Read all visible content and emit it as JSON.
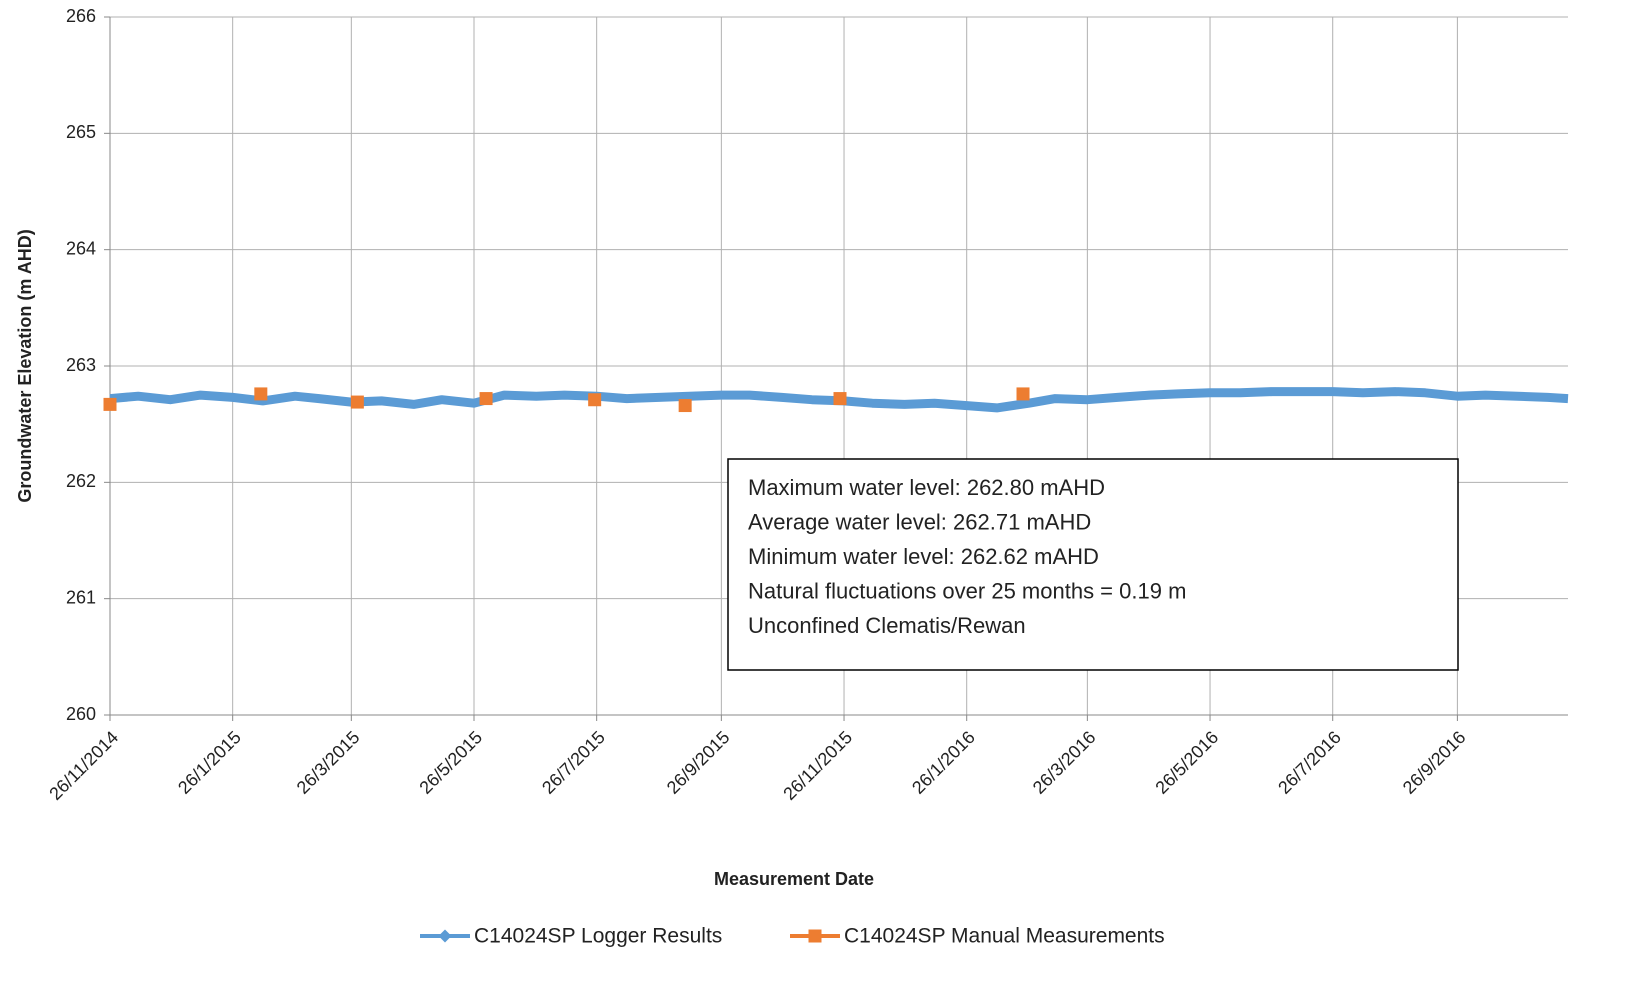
{
  "chart_data": {
    "type": "line",
    "xlabel": "Measurement Date",
    "ylabel": "Groundwater Elevation (m AHD)",
    "xlim": [
      "2014-11-26",
      "2016-11-20"
    ],
    "xticks": [
      {
        "value": "2014-11-26",
        "label": "26/11/2014"
      },
      {
        "value": "2015-01-26",
        "label": "26/1/2015"
      },
      {
        "value": "2015-03-26",
        "label": "26/3/2015"
      },
      {
        "value": "2015-05-26",
        "label": "26/5/2015"
      },
      {
        "value": "2015-07-26",
        "label": "26/7/2015"
      },
      {
        "value": "2015-09-26",
        "label": "26/9/2015"
      },
      {
        "value": "2015-11-26",
        "label": "26/11/2015"
      },
      {
        "value": "2016-01-26",
        "label": "26/1/2016"
      },
      {
        "value": "2016-03-26",
        "label": "26/3/2016"
      },
      {
        "value": "2016-05-26",
        "label": "26/5/2016"
      },
      {
        "value": "2016-07-26",
        "label": "26/7/2016"
      },
      {
        "value": "2016-09-26",
        "label": "26/9/2016"
      }
    ],
    "ylim": [
      260,
      266
    ],
    "yticks": [
      260,
      261,
      262,
      263,
      264,
      265,
      266
    ],
    "grid": true,
    "legend": "bottom",
    "series": [
      {
        "name": "C14024SP Logger Results",
        "color": "#5b9bd5",
        "marker": "diamond",
        "x": [
          "2014-11-26",
          "2014-12-10",
          "2014-12-26",
          "2015-01-10",
          "2015-01-26",
          "2015-02-10",
          "2015-02-26",
          "2015-03-10",
          "2015-03-26",
          "2015-04-10",
          "2015-04-26",
          "2015-05-10",
          "2015-05-26",
          "2015-06-10",
          "2015-06-26",
          "2015-07-10",
          "2015-07-26",
          "2015-08-10",
          "2015-08-26",
          "2015-09-10",
          "2015-09-26",
          "2015-10-10",
          "2015-10-26",
          "2015-11-10",
          "2015-11-26",
          "2015-12-10",
          "2015-12-26",
          "2016-01-10",
          "2016-01-26",
          "2016-02-10",
          "2016-02-26",
          "2016-03-10",
          "2016-03-26",
          "2016-04-10",
          "2016-04-26",
          "2016-05-10",
          "2016-05-26",
          "2016-06-10",
          "2016-06-26",
          "2016-07-10",
          "2016-07-26",
          "2016-08-10",
          "2016-08-26",
          "2016-09-10",
          "2016-09-26",
          "2016-10-10",
          "2016-10-26",
          "2016-11-10",
          "2016-11-20"
        ],
        "values": [
          262.72,
          262.74,
          262.71,
          262.75,
          262.73,
          262.7,
          262.74,
          262.72,
          262.69,
          262.7,
          262.67,
          262.71,
          262.68,
          262.75,
          262.74,
          262.75,
          262.74,
          262.72,
          262.73,
          262.74,
          262.75,
          262.75,
          262.73,
          262.71,
          262.7,
          262.68,
          262.67,
          262.68,
          262.66,
          262.64,
          262.68,
          262.72,
          262.71,
          262.73,
          262.75,
          262.76,
          262.77,
          262.77,
          262.78,
          262.78,
          262.78,
          262.77,
          262.78,
          262.77,
          262.74,
          262.75,
          262.74,
          262.73,
          262.72
        ]
      },
      {
        "name": "C14024SP Manual Measurements",
        "color": "#ed7d31",
        "marker": "square",
        "x": [
          "2014-11-26",
          "2015-02-09",
          "2015-03-29",
          "2015-06-01",
          "2015-07-25",
          "2015-09-08",
          "2015-11-24",
          "2016-02-23"
        ],
        "values": [
          262.67,
          262.76,
          262.69,
          262.72,
          262.71,
          262.66,
          262.72,
          262.76
        ]
      }
    ],
    "annotations": [
      "Maximum water level: 262.80 mAHD",
      "Average water level: 262.71 mAHD",
      "Minimum water level: 262.62 mAHD",
      "Natural fluctuations over 25 months = 0.19 m",
      "Unconfined Clematis/Rewan"
    ]
  }
}
